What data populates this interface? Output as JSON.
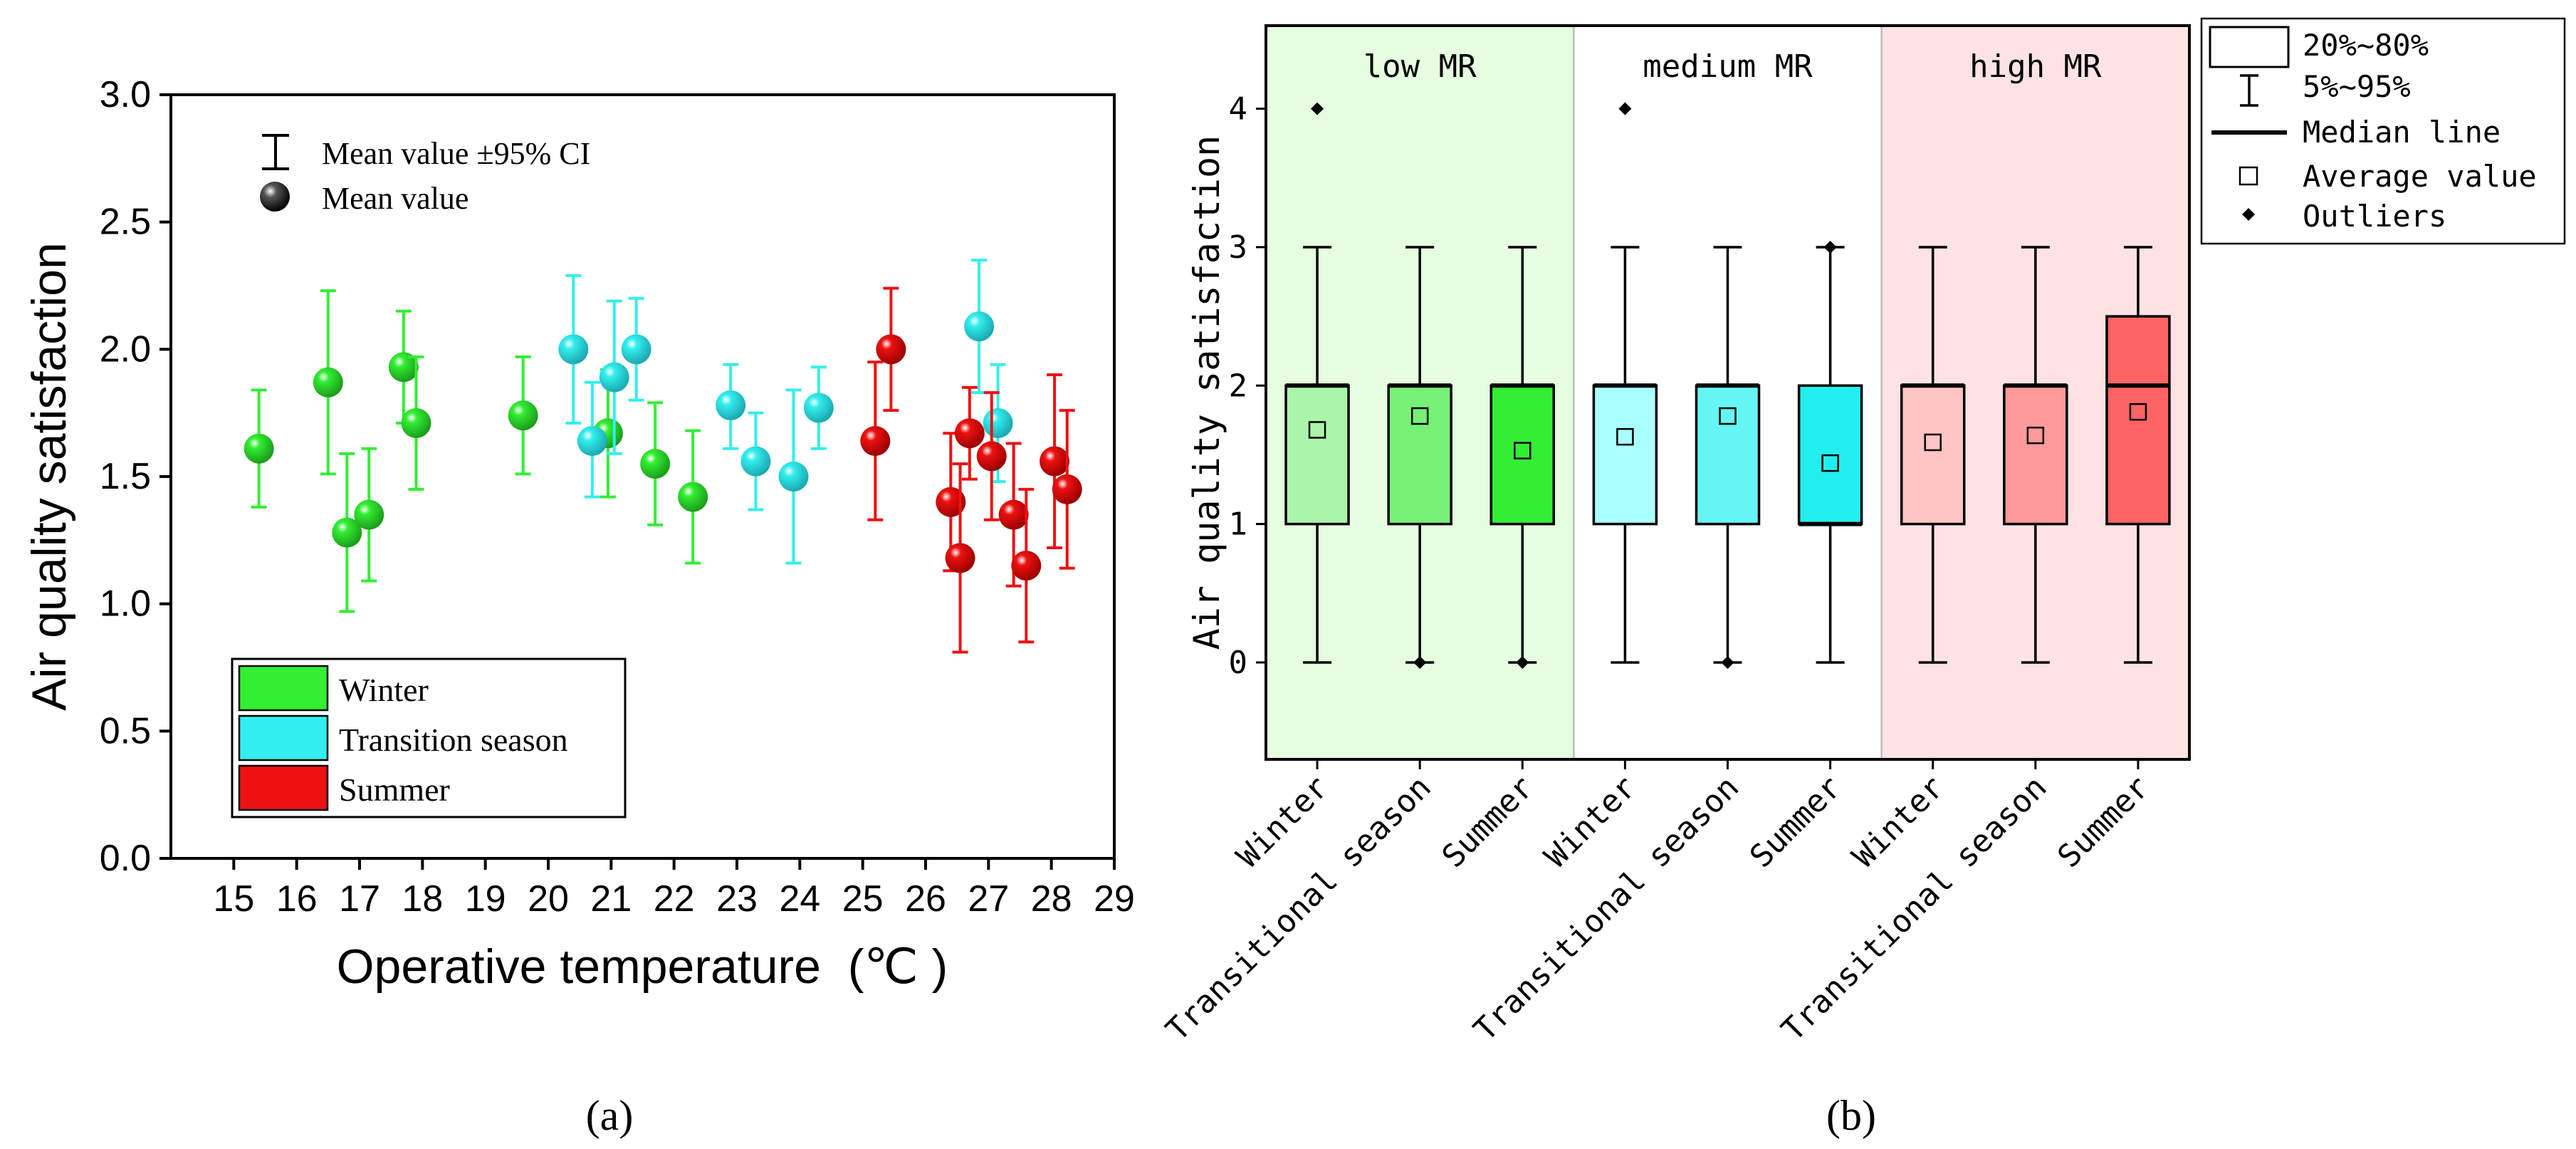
{
  "panel_a": {
    "caption": "(a)",
    "legend_top": {
      "ci_label": "Mean value ±95% CI",
      "mean_label": "Mean value"
    },
    "legend_box": [
      "Winter",
      "Transition season",
      "Summer"
    ],
    "xlabel": "Operative temperature  (℃ )",
    "ylabel": "Air quality satisfaction"
  },
  "panel_b": {
    "caption": "(b)",
    "ylabel": "Air quality satisfaction",
    "legend": [
      "20%~80%",
      "5%~95%",
      "Median line",
      "Average value",
      "Outliers"
    ],
    "regions": [
      "low MR",
      "medium MR",
      "high MR"
    ]
  },
  "colors": {
    "winter": "#33ee33",
    "transition": "#33eeee",
    "summer": "#ee1111",
    "low_bg": "#e6fde0",
    "high_bg": "#fde3e3"
  },
  "chart_data": [
    {
      "type": "scatter",
      "xlabel": "Operative temperature (℃ )",
      "ylabel": "Air quality satisfaction",
      "xlim": [
        14,
        29
      ],
      "ylim": [
        0,
        3
      ],
      "xticks": [
        15,
        16,
        17,
        18,
        19,
        20,
        21,
        22,
        23,
        24,
        25,
        26,
        27,
        28,
        29
      ],
      "yticks": [
        "0.0",
        "0.5",
        "1.0",
        "1.5",
        "2.0",
        "2.5",
        "3.0"
      ],
      "series": [
        {
          "name": "Winter",
          "color": "#33ee33",
          "points": [
            {
              "x": 15.4,
              "y": 1.61,
              "lo": 1.38,
              "hi": 1.84
            },
            {
              "x": 16.5,
              "y": 1.87,
              "lo": 1.51,
              "hi": 2.23
            },
            {
              "x": 16.8,
              "y": 1.28,
              "lo": 0.97,
              "hi": 1.59
            },
            {
              "x": 17.15,
              "y": 1.35,
              "lo": 1.09,
              "hi": 1.61
            },
            {
              "x": 17.7,
              "y": 1.93,
              "lo": 1.71,
              "hi": 2.15
            },
            {
              "x": 17.9,
              "y": 1.71,
              "lo": 1.45,
              "hi": 1.97
            },
            {
              "x": 19.6,
              "y": 1.74,
              "lo": 1.51,
              "hi": 1.97
            },
            {
              "x": 20.95,
              "y": 1.67,
              "lo": 1.42,
              "hi": 1.92
            },
            {
              "x": 21.7,
              "y": 1.55,
              "lo": 1.31,
              "hi": 1.79
            },
            {
              "x": 22.3,
              "y": 1.42,
              "lo": 1.16,
              "hi": 1.68
            }
          ]
        },
        {
          "name": "Transition season",
          "color": "#33eeee",
          "points": [
            {
              "x": 20.4,
              "y": 2.0,
              "lo": 1.71,
              "hi": 2.29
            },
            {
              "x": 20.7,
              "y": 1.64,
              "lo": 1.42,
              "hi": 1.87
            },
            {
              "x": 21.05,
              "y": 1.89,
              "lo": 1.59,
              "hi": 2.19
            },
            {
              "x": 21.4,
              "y": 2.0,
              "lo": 1.8,
              "hi": 2.2
            },
            {
              "x": 22.9,
              "y": 1.78,
              "lo": 1.61,
              "hi": 1.94
            },
            {
              "x": 23.3,
              "y": 1.56,
              "lo": 1.37,
              "hi": 1.75
            },
            {
              "x": 23.9,
              "y": 1.5,
              "lo": 1.16,
              "hi": 1.84
            },
            {
              "x": 24.3,
              "y": 1.77,
              "lo": 1.61,
              "hi": 1.93
            },
            {
              "x": 26.85,
              "y": 2.09,
              "lo": 1.83,
              "hi": 2.35
            },
            {
              "x": 27.15,
              "y": 1.71,
              "lo": 1.48,
              "hi": 1.94
            }
          ]
        },
        {
          "name": "Summer",
          "color": "#ee1111",
          "points": [
            {
              "x": 25.2,
              "y": 1.64,
              "lo": 1.33,
              "hi": 1.95
            },
            {
              "x": 25.45,
              "y": 2.0,
              "lo": 1.76,
              "hi": 2.24
            },
            {
              "x": 26.4,
              "y": 1.4,
              "lo": 1.13,
              "hi": 1.67
            },
            {
              "x": 26.55,
              "y": 1.18,
              "lo": 0.81,
              "hi": 1.55
            },
            {
              "x": 26.7,
              "y": 1.67,
              "lo": 1.49,
              "hi": 1.85
            },
            {
              "x": 27.05,
              "y": 1.58,
              "lo": 1.33,
              "hi": 1.83
            },
            {
              "x": 27.4,
              "y": 1.35,
              "lo": 1.07,
              "hi": 1.63
            },
            {
              "x": 27.6,
              "y": 1.15,
              "lo": 0.85,
              "hi": 1.45
            },
            {
              "x": 28.05,
              "y": 1.56,
              "lo": 1.22,
              "hi": 1.9
            },
            {
              "x": 28.25,
              "y": 1.45,
              "lo": 1.14,
              "hi": 1.76
            }
          ]
        }
      ]
    },
    {
      "type": "box",
      "ylabel": "Air quality satisfaction",
      "ylim": [
        -0.7,
        4.6
      ],
      "yticks": [
        0,
        1,
        2,
        3,
        4
      ],
      "categories": [
        "Winter",
        "Transitional season",
        "Summer",
        "Winter",
        "Transitional season",
        "Summer",
        "Winter",
        "Transitional season",
        "Summer"
      ],
      "regions": [
        {
          "label": "low MR",
          "from": 0,
          "to": 2
        },
        {
          "label": "medium MR",
          "from": 3,
          "to": 5
        },
        {
          "label": "high MR",
          "from": 6,
          "to": 8
        }
      ],
      "boxes": [
        {
          "group": "low MR",
          "season": "Winter",
          "color": "#aaf5aa",
          "whisker_low": 0,
          "q20": 1,
          "median": 2,
          "q80": 2,
          "whisker_high": 3,
          "mean": 1.68,
          "outliers": [
            4
          ]
        },
        {
          "group": "low MR",
          "season": "Transitional season",
          "color": "#77f077",
          "whisker_low": 0,
          "q20": 1,
          "median": 2,
          "q80": 2,
          "whisker_high": 3,
          "mean": 1.78,
          "outliers": [
            0
          ]
        },
        {
          "group": "low MR",
          "season": "Summer",
          "color": "#33ee33",
          "whisker_low": 0,
          "q20": 1,
          "median": 2,
          "q80": 2,
          "whisker_high": 3,
          "mean": 1.53,
          "outliers": [
            0
          ]
        },
        {
          "group": "medium MR",
          "season": "Winter",
          "color": "#aaffff",
          "whisker_low": 0,
          "q20": 1,
          "median": 2,
          "q80": 2,
          "whisker_high": 3,
          "mean": 1.63,
          "outliers": [
            4
          ]
        },
        {
          "group": "medium MR",
          "season": "Transitional season",
          "color": "#66f5f5",
          "whisker_low": 0,
          "q20": 1,
          "median": 2,
          "q80": 2,
          "whisker_high": 3,
          "mean": 1.78,
          "outliers": [
            0
          ]
        },
        {
          "group": "medium MR",
          "season": "Summer",
          "color": "#22eeee",
          "whisker_low": 0,
          "q20": 1,
          "median": 1,
          "q80": 2,
          "whisker_high": 3,
          "mean": 1.44,
          "outliers": [
            3
          ]
        },
        {
          "group": "high MR",
          "season": "Winter",
          "color": "#ffc4c4",
          "whisker_low": 0,
          "q20": 1,
          "median": 2,
          "q80": 2,
          "whisker_high": 3,
          "mean": 1.59,
          "outliers": []
        },
        {
          "group": "high MR",
          "season": "Transitional season",
          "color": "#ff9a9a",
          "whisker_low": 0,
          "q20": 1,
          "median": 2,
          "q80": 2,
          "whisker_high": 3,
          "mean": 1.64,
          "outliers": []
        },
        {
          "group": "high MR",
          "season": "Summer",
          "color": "#ff6464",
          "whisker_low": 0,
          "q20": 1,
          "median": 2,
          "q80": 2.5,
          "whisker_high": 3,
          "mean": 1.81,
          "outliers": []
        }
      ]
    }
  ]
}
